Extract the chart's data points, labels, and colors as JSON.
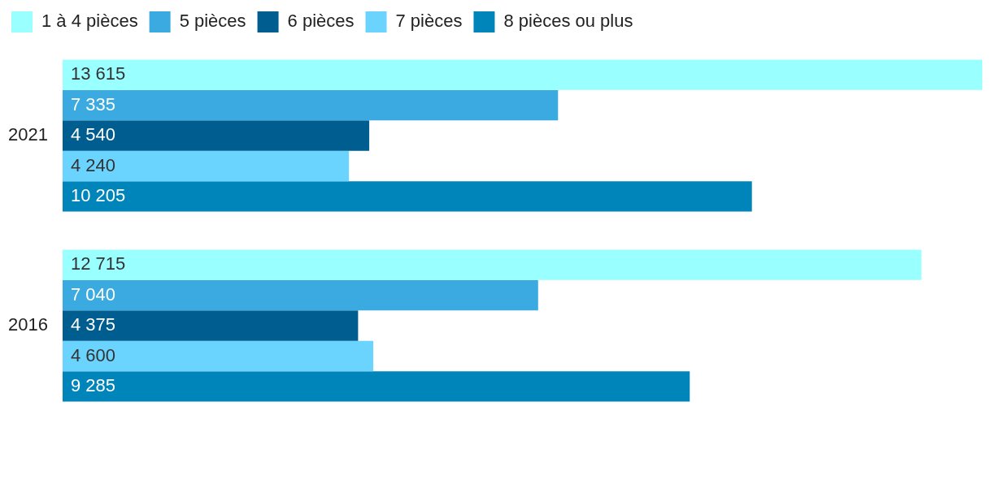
{
  "chart_data": {
    "type": "bar",
    "orientation": "horizontal",
    "categories": [
      "2021",
      "2016"
    ],
    "series": [
      {
        "name": "1 à 4 pièces",
        "color": "#99ffff",
        "values": [
          13615,
          12715
        ],
        "value_labels": [
          "13 615",
          "12 715"
        ]
      },
      {
        "name": "5 pièces",
        "color": "#3aaae0",
        "values": [
          7335,
          7040
        ],
        "value_labels": [
          "7 335",
          "7 040"
        ]
      },
      {
        "name": "6 pièces",
        "color": "#005d8f",
        "values": [
          4540,
          4375
        ],
        "value_labels": [
          "4 540",
          "4 375"
        ]
      },
      {
        "name": "7 pièces",
        "color": "#6ad4ff",
        "values": [
          4240,
          4600
        ],
        "value_labels": [
          "4 240",
          "4 600"
        ]
      },
      {
        "name": "8 pièces ou plus",
        "color": "#0085bb",
        "values": [
          10205,
          9285
        ],
        "value_labels": [
          "10 205",
          "9 285"
        ]
      }
    ],
    "xlim": [
      0,
      13615
    ],
    "tick_labels": "y",
    "legend": "top left"
  }
}
